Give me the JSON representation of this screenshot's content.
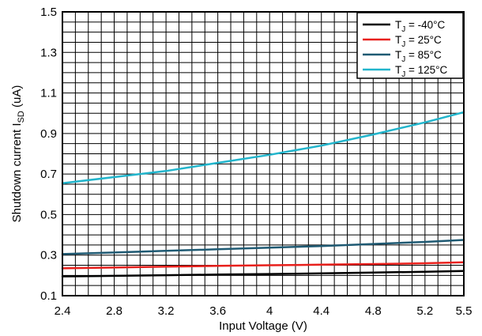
{
  "chart_data": {
    "type": "line",
    "xlabel": "Input Voltage (V)",
    "ylabel": {
      "main": "Shutdown current I",
      "sub": "SD",
      "unit": " (uA)"
    },
    "xlim": [
      2.4,
      5.5
    ],
    "ylim": [
      0.1,
      1.5
    ],
    "x_ticks": [
      "2.4",
      "2.8",
      "3.2",
      "3.6",
      "4",
      "4.4",
      "4.8",
      "5.2",
      "5.5"
    ],
    "y_ticks": [
      "0.1",
      "0.3",
      "0.5",
      "0.7",
      "0.9",
      "1.1",
      "1.3",
      "1.5"
    ],
    "x_tick_values": [
      2.4,
      2.8,
      3.2,
      3.6,
      4.0,
      4.4,
      4.8,
      5.2,
      5.5
    ],
    "y_tick_values": [
      0.1,
      0.3,
      0.5,
      0.7,
      0.9,
      1.1,
      1.3,
      1.5
    ],
    "grid": true,
    "legend_position": "top-right",
    "series": [
      {
        "name": {
          "pre": "T",
          "sub": "J",
          "post": " = -40°C"
        },
        "color": "#000000",
        "x": [
          2.4,
          2.8,
          3.2,
          3.6,
          4.0,
          4.4,
          4.8,
          5.2,
          5.5
        ],
        "y": [
          0.195,
          0.198,
          0.201,
          0.204,
          0.207,
          0.21,
          0.214,
          0.218,
          0.222
        ]
      },
      {
        "name": {
          "pre": "T",
          "sub": "J",
          "post": " =  25°C"
        },
        "color": "#e8201c",
        "x": [
          2.4,
          2.8,
          3.2,
          3.6,
          4.0,
          4.4,
          4.8,
          5.2,
          5.5
        ],
        "y": [
          0.235,
          0.239,
          0.243,
          0.247,
          0.25,
          0.253,
          0.256,
          0.26,
          0.265
        ]
      },
      {
        "name": {
          "pre": "T",
          "sub": "J",
          "post": " =  85°C"
        },
        "color": "#1f5a73",
        "x": [
          2.4,
          2.8,
          3.2,
          3.6,
          4.0,
          4.4,
          4.8,
          5.2,
          5.5
        ],
        "y": [
          0.305,
          0.313,
          0.321,
          0.329,
          0.337,
          0.345,
          0.355,
          0.365,
          0.375
        ]
      },
      {
        "name": {
          "pre": "T",
          "sub": "J",
          "post": " = 125°C"
        },
        "color": "#22b5cc",
        "x": [
          2.4,
          2.8,
          3.2,
          3.6,
          4.0,
          4.4,
          4.8,
          5.2,
          5.5
        ],
        "y": [
          0.655,
          0.685,
          0.715,
          0.755,
          0.795,
          0.84,
          0.895,
          0.955,
          1.005
        ]
      }
    ]
  }
}
